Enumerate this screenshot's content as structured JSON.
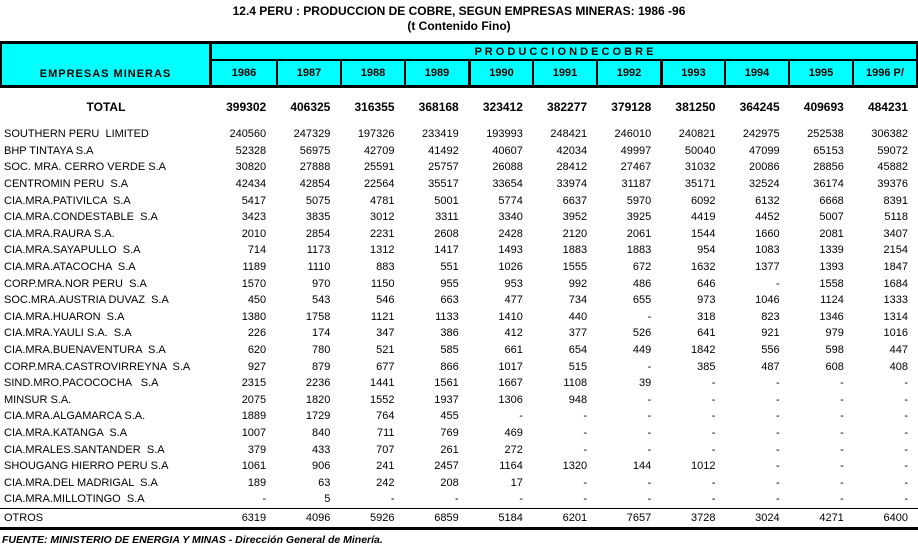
{
  "title": "12.4 PERU : PRODUCCION DE COBRE, SEGUN EMPRESAS MINERAS: 1986 -96",
  "subtitle": "(t Contenido Fino)",
  "header": {
    "empresas_label": "EMPRESAS MINERAS",
    "produccion_label": "P R O D U C C I O N     D E     C O B R E",
    "years": [
      "1986",
      "1987",
      "1988",
      "1989",
      "1990",
      "1991",
      "1992",
      "1993",
      "1994",
      "1995",
      "1996 P/"
    ]
  },
  "colors": {
    "header_bg": "#00ffff",
    "border": "#000000",
    "text": "#000000"
  },
  "chart_data": {
    "type": "table",
    "title": "12.4 PERU : PRODUCCION DE COBRE, SEGUN EMPRESAS MINERAS: 1986 -96 (t Contenido Fino)",
    "columns": [
      "1986",
      "1987",
      "1988",
      "1989",
      "1990",
      "1991",
      "1992",
      "1993",
      "1994",
      "1995",
      "1996 P/"
    ],
    "total": {
      "label": "TOTAL",
      "values": [
        "399302",
        "406325",
        "316355",
        "368168",
        "323412",
        "382277",
        "379128",
        "381250",
        "364245",
        "409693",
        "484231"
      ]
    },
    "rows": [
      {
        "label": "SOUTHERN PERU  LIMITED",
        "values": [
          "240560",
          "247329",
          "197326",
          "233419",
          "193993",
          "248421",
          "246010",
          "240821",
          "242975",
          "252538",
          "306382"
        ]
      },
      {
        "label": "BHP TINTAYA S.A",
        "values": [
          "52328",
          "56975",
          "42709",
          "41492",
          "40607",
          "42034",
          "49997",
          "50040",
          "47099",
          "65153",
          "59072"
        ]
      },
      {
        "label": "SOC. MRA. CERRO VERDE S.A",
        "values": [
          "30820",
          "27888",
          "25591",
          "25757",
          "26088",
          "28412",
          "27467",
          "31032",
          "20086",
          "28856",
          "45882"
        ]
      },
      {
        "label": "CENTROMIN PERU  S.A",
        "values": [
          "42434",
          "42854",
          "22564",
          "35517",
          "33654",
          "33974",
          "31187",
          "35171",
          "32524",
          "36174",
          "39376"
        ]
      },
      {
        "label": "CIA.MRA.PATIVILCA  S.A",
        "values": [
          "5417",
          "5075",
          "4781",
          "5001",
          "5774",
          "6637",
          "5970",
          "6092",
          "6132",
          "6668",
          "8391"
        ]
      },
      {
        "label": "CIA.MRA.CONDESTABLE  S.A",
        "values": [
          "3423",
          "3835",
          "3012",
          "3311",
          "3340",
          "3952",
          "3925",
          "4419",
          "4452",
          "5007",
          "5118"
        ]
      },
      {
        "label": "CIA.MRA.RAURA S.A.",
        "values": [
          "2010",
          "2854",
          "2231",
          "2608",
          "2428",
          "2120",
          "2061",
          "1544",
          "1660",
          "2081",
          "3407"
        ]
      },
      {
        "label": "CIA.MRA.SAYAPULLO  S.A",
        "values": [
          "714",
          "1173",
          "1312",
          "1417",
          "1493",
          "1883",
          "1883",
          "954",
          "1083",
          "1339",
          "2154"
        ]
      },
      {
        "label": "CIA.MRA.ATACOCHA  S.A",
        "values": [
          "1189",
          "1110",
          "883",
          "551",
          "1026",
          "1555",
          "672",
          "1632",
          "1377",
          "1393",
          "1847"
        ]
      },
      {
        "label": "CORP.MRA.NOR PERU  S.A",
        "values": [
          "1570",
          "970",
          "1150",
          "955",
          "953",
          "992",
          "486",
          "646",
          "-",
          "1558",
          "1684"
        ]
      },
      {
        "label": "SOC.MRA.AUSTRIA DUVAZ  S.A",
        "values": [
          "450",
          "543",
          "546",
          "663",
          "477",
          "734",
          "655",
          "973",
          "1046",
          "1124",
          "1333"
        ]
      },
      {
        "label": "CIA.MRA.HUARON  S.A",
        "values": [
          "1380",
          "1758",
          "1121",
          "1133",
          "1410",
          "440",
          "-",
          "318",
          "823",
          "1346",
          "1314"
        ]
      },
      {
        "label": "CIA.MRA.YAULI S.A.  S.A",
        "values": [
          "226",
          "174",
          "347",
          "386",
          "412",
          "377",
          "526",
          "641",
          "921",
          "979",
          "1016"
        ]
      },
      {
        "label": "CIA.MRA.BUENAVENTURA  S.A",
        "values": [
          "620",
          "780",
          "521",
          "585",
          "661",
          "654",
          "449",
          "1842",
          "556",
          "598",
          "447"
        ]
      },
      {
        "label": "CORP.MRA.CASTROVIRREYNA  S.A",
        "values": [
          "927",
          "879",
          "677",
          "866",
          "1017",
          "515",
          "-",
          "385",
          "487",
          "608",
          "408"
        ]
      },
      {
        "label": "SIND.MRO.PACOCOCHA   S.A",
        "values": [
          "2315",
          "2236",
          "1441",
          "1561",
          "1667",
          "1108",
          "39",
          "-",
          "-",
          "-",
          "-"
        ]
      },
      {
        "label": "MINSUR S.A.",
        "values": [
          "2075",
          "1820",
          "1552",
          "1937",
          "1306",
          "948",
          "-",
          "-",
          "-",
          "-",
          "-"
        ]
      },
      {
        "label": "CIA.MRA.ALGAMARCA S.A.",
        "values": [
          "1889",
          "1729",
          "764",
          "455",
          "-",
          "-",
          "-",
          "-",
          "-",
          "-",
          "-"
        ]
      },
      {
        "label": "CIA.MRA.KATANGA  S.A",
        "values": [
          "1007",
          "840",
          "711",
          "769",
          "469",
          "-",
          "-",
          "-",
          "-",
          "-",
          "-"
        ]
      },
      {
        "label": "CIA.MRALES.SANTANDER  S.A",
        "values": [
          "379",
          "433",
          "707",
          "261",
          "272",
          "-",
          "-",
          "-",
          "-",
          "-",
          "-"
        ]
      },
      {
        "label": "SHOUGANG HIERRO PERU S.A",
        "values": [
          "1061",
          "906",
          "241",
          "2457",
          "1164",
          "1320",
          "144",
          "1012",
          "-",
          "-",
          "-"
        ]
      },
      {
        "label": "CIA.MRA.DEL MADRIGAL  S.A",
        "values": [
          "189",
          "63",
          "242",
          "208",
          "17",
          "-",
          "-",
          "-",
          "-",
          "-",
          "-"
        ]
      },
      {
        "label": "CIA.MRA.MILLOTINGO  S.A",
        "values": [
          "-",
          "5",
          "-",
          "-",
          "-",
          "-",
          "-",
          "-",
          "-",
          "-",
          "-"
        ]
      }
    ],
    "otros": {
      "label": "OTROS",
      "values": [
        "6319",
        "4096",
        "5926",
        "6859",
        "5184",
        "6201",
        "7657",
        "3728",
        "3024",
        "4271",
        "6400"
      ]
    }
  },
  "footer": "FUENTE: MINISTERIO DE ENERGIA Y MINAS - Dirección General de Minería."
}
